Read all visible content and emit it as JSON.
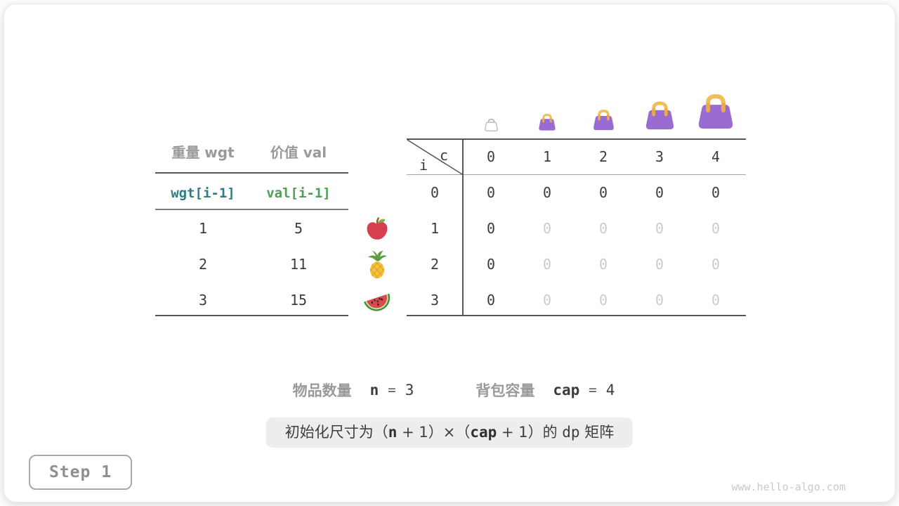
{
  "colors": {
    "bag_purple": "#9a6bd1",
    "bag_handle": "#f3bd5c",
    "wgt_teal": "#2e7d85",
    "val_green": "#4f9e58",
    "label_gray": "#9a9a9a",
    "text_dark": "#3c3c3c",
    "muted_cell_gray": "#cbcbcb",
    "pill_bg": "#ededed"
  },
  "items_table": {
    "col_headers": [
      "重量 wgt",
      "价值 val"
    ],
    "code_row": [
      "wgt[i-1]",
      "val[i-1]"
    ],
    "rows": [
      {
        "weight": "1",
        "value": "5"
      },
      {
        "weight": "2",
        "value": "11"
      },
      {
        "weight": "3",
        "value": "15"
      }
    ],
    "row_icons": [
      "apple-icon",
      "pineapple-icon",
      "watermelon-icon"
    ]
  },
  "dp_table": {
    "corner_col_var": "c",
    "corner_row_var": "i",
    "col_icons": [
      "bag-outline-icon",
      "bag-icon",
      "bag-icon",
      "bag-icon",
      "bag-icon"
    ],
    "col_headers": [
      "0",
      "1",
      "2",
      "3",
      "4"
    ],
    "row_headers": [
      "0",
      "1",
      "2",
      "3"
    ],
    "cells": [
      [
        "0",
        "0",
        "0",
        "0",
        "0"
      ],
      [
        "0",
        "0",
        "0",
        "0",
        "0"
      ],
      [
        "0",
        "0",
        "0",
        "0",
        "0"
      ],
      [
        "0",
        "0",
        "0",
        "0",
        "0"
      ]
    ],
    "muted": [
      [
        false,
        false,
        false,
        false,
        false
      ],
      [
        false,
        true,
        true,
        true,
        true
      ],
      [
        false,
        true,
        true,
        true,
        true
      ],
      [
        false,
        true,
        true,
        true,
        true
      ]
    ]
  },
  "stats": {
    "items_label": "物品数量",
    "items_var": "n",
    "items_eq": "=",
    "items_value": "3",
    "cap_label": "背包容量",
    "cap_var": "cap",
    "cap_eq": "=",
    "cap_value": "4"
  },
  "caption": {
    "part1": "初始化尺寸为（",
    "var1": "n",
    "part2": " + 1）×（",
    "var2": "cap",
    "part3": " + 1）的 ",
    "code": "dp",
    "part4": " 矩阵"
  },
  "step_badge": "Step 1",
  "watermark": "www.hello-algo.com"
}
